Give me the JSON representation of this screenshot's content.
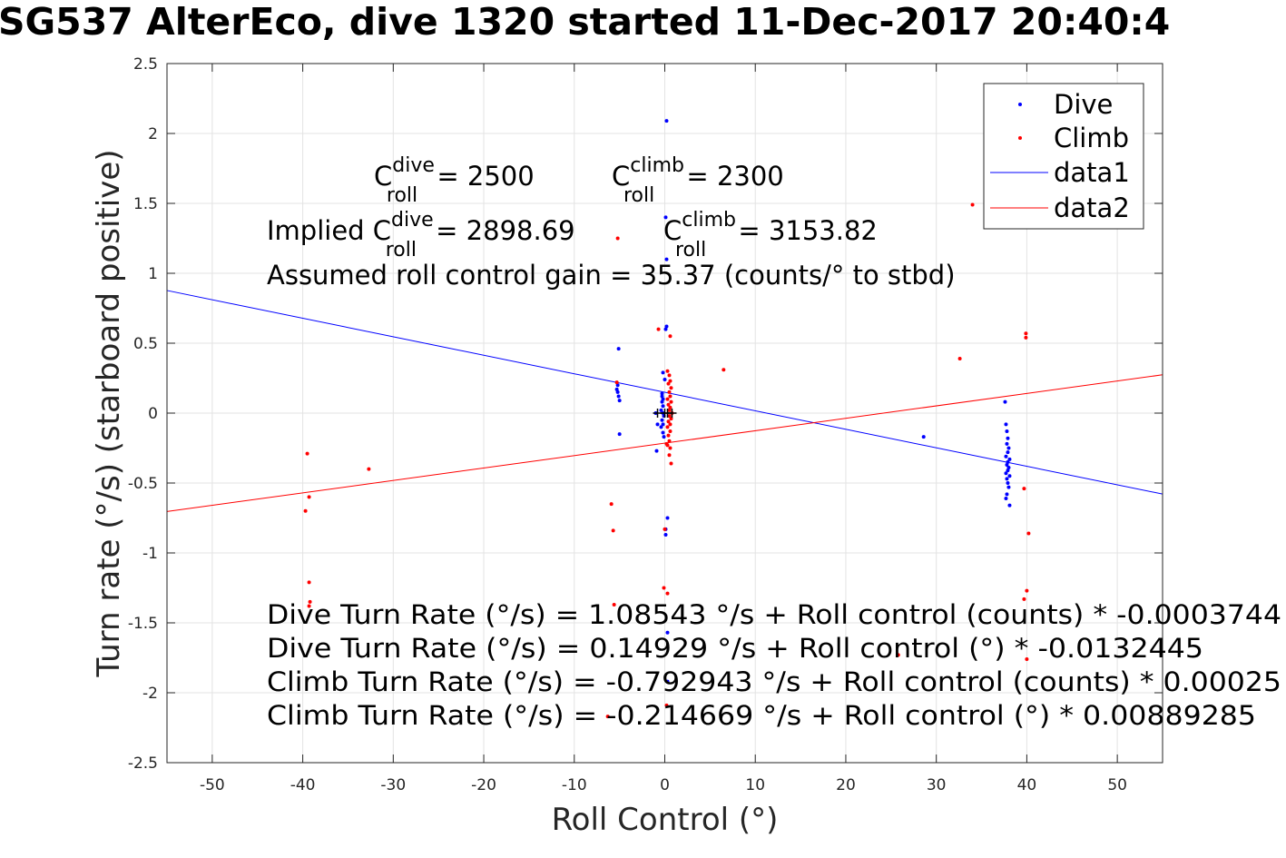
{
  "chart_data": {
    "type": "scatter",
    "title": "SG537 AlterEco, dive 1320 started 11-Dec-2017 20:40:4",
    "xlabel": "Roll Control (°)",
    "ylabel": "Turn rate (°/s) (starboard positive)",
    "xlim": [
      -55,
      55
    ],
    "ylim": [
      -2.5,
      2.5
    ],
    "grid": true,
    "x_ticks": [
      -50,
      -40,
      -30,
      -20,
      -10,
      0,
      10,
      20,
      30,
      40,
      50
    ],
    "y_ticks": [
      -2.5,
      -2,
      -1.5,
      -1,
      -0.5,
      0,
      0.5,
      1,
      1.5,
      2,
      2.5
    ],
    "legend": {
      "placement": "top-right",
      "entries": [
        "Dive",
        "Climb",
        "data1",
        "data2"
      ]
    },
    "series": [
      {
        "name": "Dive",
        "kind": "points",
        "color": "#0000ff",
        "points": [
          [
            0.2,
            2.09
          ],
          [
            0.1,
            1.4
          ],
          [
            0.2,
            1.1
          ],
          [
            0.2,
            0.62
          ],
          [
            0.1,
            0.6
          ],
          [
            -0.2,
            0.29
          ],
          [
            0.0,
            0.24
          ],
          [
            -0.3,
            0.14
          ],
          [
            -0.3,
            0.12
          ],
          [
            -0.2,
            0.1
          ],
          [
            -0.3,
            0.08
          ],
          [
            -0.2,
            0.05
          ],
          [
            -0.4,
            0.02
          ],
          [
            -0.2,
            0.0
          ],
          [
            -0.1,
            -0.02
          ],
          [
            -0.3,
            -0.05
          ],
          [
            -0.2,
            -0.08
          ],
          [
            -0.4,
            -0.1
          ],
          [
            -0.2,
            -0.14
          ],
          [
            -0.1,
            -0.17
          ],
          [
            -0.8,
            -0.08
          ],
          [
            -1.0,
            0.0
          ],
          [
            -0.9,
            -0.27
          ],
          [
            -5.1,
            0.46
          ],
          [
            -5.2,
            0.2
          ],
          [
            -5.3,
            0.17
          ],
          [
            -5.2,
            0.15
          ],
          [
            -5.1,
            0.12
          ],
          [
            -5.0,
            0.09
          ],
          [
            -5.0,
            -0.15
          ],
          [
            0.3,
            -0.75
          ],
          [
            0.1,
            -0.83
          ],
          [
            0.1,
            -0.87
          ],
          [
            0.3,
            -1.57
          ],
          [
            0.3,
            -1.92
          ],
          [
            28.6,
            -0.17
          ],
          [
            37.6,
            0.08
          ],
          [
            37.7,
            -0.08
          ],
          [
            37.8,
            -0.13
          ],
          [
            37.9,
            -0.18
          ],
          [
            37.8,
            -0.22
          ],
          [
            38.0,
            -0.25
          ],
          [
            37.9,
            -0.28
          ],
          [
            37.7,
            -0.31
          ],
          [
            38.1,
            -0.33
          ],
          [
            37.9,
            -0.35
          ],
          [
            37.8,
            -0.37
          ],
          [
            38.0,
            -0.39
          ],
          [
            37.9,
            -0.41
          ],
          [
            37.7,
            -0.43
          ],
          [
            38.1,
            -0.45
          ],
          [
            37.8,
            -0.47
          ],
          [
            37.9,
            -0.5
          ],
          [
            38.0,
            -0.53
          ],
          [
            37.8,
            -0.58
          ],
          [
            37.7,
            -0.61
          ],
          [
            38.1,
            -0.66
          ]
        ]
      },
      {
        "name": "Climb",
        "kind": "points",
        "color": "#ff0000",
        "points": [
          [
            -5.2,
            1.25
          ],
          [
            -0.7,
            0.6
          ],
          [
            0.6,
            0.55
          ],
          [
            0.3,
            0.3
          ],
          [
            0.5,
            0.27
          ],
          [
            0.6,
            0.23
          ],
          [
            0.4,
            0.21
          ],
          [
            0.7,
            0.18
          ],
          [
            0.5,
            0.15
          ],
          [
            0.6,
            0.12
          ],
          [
            0.3,
            0.1
          ],
          [
            0.7,
            0.08
          ],
          [
            0.4,
            0.06
          ],
          [
            0.6,
            0.04
          ],
          [
            0.5,
            0.02
          ],
          [
            0.8,
            0.0
          ],
          [
            0.5,
            -0.02
          ],
          [
            0.7,
            -0.04
          ],
          [
            0.4,
            -0.06
          ],
          [
            0.6,
            -0.08
          ],
          [
            0.3,
            -0.1
          ],
          [
            0.6,
            -0.13
          ],
          [
            0.4,
            -0.16
          ],
          [
            0.5,
            -0.2
          ],
          [
            0.3,
            -0.23
          ],
          [
            0.6,
            -0.25
          ],
          [
            0.2,
            -0.22
          ],
          [
            0.5,
            -0.3
          ],
          [
            0.7,
            -0.36
          ],
          [
            6.5,
            0.31
          ],
          [
            -5.3,
            0.22
          ],
          [
            -5.9,
            -0.65
          ],
          [
            -5.7,
            -0.84
          ],
          [
            0.0,
            -0.83
          ],
          [
            -0.1,
            -1.25
          ],
          [
            0.3,
            -1.29
          ],
          [
            0.2,
            -2.09
          ],
          [
            -5.6,
            -1.37
          ],
          [
            -6.3,
            -2.17
          ],
          [
            -39.5,
            -0.29
          ],
          [
            -39.3,
            -0.6
          ],
          [
            -39.7,
            -0.7
          ],
          [
            -39.3,
            -1.21
          ],
          [
            -39.2,
            -1.35
          ],
          [
            -39.3,
            -1.38
          ],
          [
            -32.7,
            -0.4
          ],
          [
            32.6,
            0.39
          ],
          [
            34.0,
            1.49
          ],
          [
            39.9,
            0.57
          ],
          [
            39.9,
            0.54
          ],
          [
            39.7,
            -0.54
          ],
          [
            40.2,
            -0.86
          ],
          [
            40.0,
            -1.27
          ],
          [
            39.7,
            -1.33
          ],
          [
            40.0,
            -1.76
          ],
          [
            25.8,
            -1.73
          ]
        ]
      },
      {
        "name": "data1",
        "kind": "line",
        "color": "#0000ff",
        "points": [
          [
            -55,
            0.877
          ],
          [
            55,
            -0.579
          ]
        ]
      },
      {
        "name": "data2",
        "kind": "line",
        "color": "#ff0000",
        "points": [
          [
            -55,
            -0.704
          ],
          [
            55,
            0.274
          ]
        ]
      },
      {
        "name": "",
        "kind": "crosses",
        "color": "#000000",
        "points": [
          [
            -0.8,
            0.0
          ],
          [
            0.0,
            0.0
          ],
          [
            0.3,
            0.0
          ],
          [
            0.8,
            0.0
          ]
        ]
      }
    ]
  },
  "annotations": {
    "c_dive": {
      "prefix": "C",
      "sup": "dive",
      "sub": "roll",
      "suffix": " = 2500"
    },
    "c_climb": {
      "prefix": "C",
      "sup": "climb",
      "sub": "roll",
      "suffix": " = 2300"
    },
    "implied_dive": {
      "prefix": "Implied C",
      "sup": "dive",
      "sub": "roll",
      "suffix": " = 2898.69"
    },
    "implied_climb": {
      "prefix": "C",
      "sup": "climb",
      "sub": "roll",
      "suffix": " = 3153.82"
    },
    "gain": "Assumed roll control gain = 35.37 (counts/° to stbd)",
    "fit1": "Dive Turn Rate (°/s) = 1.08543 °/s + Roll control (counts) * -0.0003744",
    "fit2": "Dive Turn Rate (°/s) = 0.14929 °/s + Roll control (°) * -0.0132445",
    "fit3": "Climb Turn Rate (°/s) = -0.792943 °/s + Roll control (counts) * 0.00025",
    "fit4": "Climb Turn Rate (°/s) = -0.214669 °/s + Roll control (°) * 0.00889285"
  }
}
